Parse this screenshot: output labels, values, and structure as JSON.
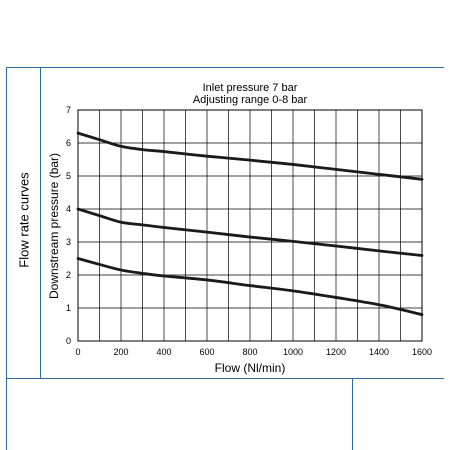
{
  "side_label": "Flow rate curves",
  "chart_data": {
    "type": "line",
    "title": "Inlet pressure 7 bar",
    "subtitle": "Adjusting range 0-8 bar",
    "xlabel": "Flow (Nl/min)",
    "ylabel": "Downstream pressure (bar)",
    "xlim": [
      0,
      1600
    ],
    "ylim": [
      0,
      7
    ],
    "x_ticks": [
      0,
      200,
      400,
      600,
      800,
      1000,
      1200,
      1400,
      1600
    ],
    "y_ticks": [
      0,
      1,
      2,
      3,
      4,
      5,
      6,
      7
    ],
    "x_minor_step": 100,
    "grid": true,
    "legend": "none",
    "line_color": "#1a1a1a",
    "series": [
      {
        "x": [
          0,
          100,
          200,
          300,
          400,
          600,
          800,
          1000,
          1200,
          1400,
          1600
        ],
        "y": [
          6.3,
          6.1,
          5.9,
          5.8,
          5.74,
          5.6,
          5.48,
          5.35,
          5.2,
          5.05,
          4.9
        ]
      },
      {
        "x": [
          0,
          100,
          200,
          300,
          400,
          600,
          800,
          1000,
          1200,
          1400,
          1600
        ],
        "y": [
          4.0,
          3.8,
          3.6,
          3.52,
          3.44,
          3.3,
          3.15,
          3.02,
          2.88,
          2.73,
          2.59
        ]
      },
      {
        "x": [
          0,
          100,
          200,
          300,
          400,
          600,
          800,
          1000,
          1200,
          1400,
          1600
        ],
        "y": [
          2.5,
          2.32,
          2.15,
          2.05,
          1.97,
          1.85,
          1.68,
          1.52,
          1.32,
          1.1,
          0.8
        ]
      }
    ]
  }
}
